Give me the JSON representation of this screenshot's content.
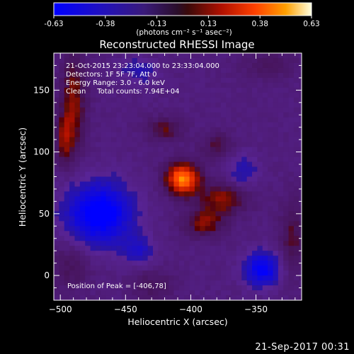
{
  "chart_data": {
    "type": "heatmap",
    "title": "Reconstructed RHESSI Image",
    "xlabel": "Heliocentric X (arcsec)",
    "ylabel": "Heliocentric Y (arcsec)",
    "xlim": [
      -505,
      -315
    ],
    "ylim": [
      -20,
      180
    ],
    "xticks": [
      -500,
      -450,
      -400,
      -350
    ],
    "yticks": [
      0,
      50,
      100,
      150
    ],
    "colorbar": {
      "min": -0.63,
      "max": 0.63,
      "ticks": [
        "-0.63",
        "-0.38",
        "-0.13",
        "0.13",
        "0.38",
        "0.63"
      ],
      "label": "(photons cm⁻² s⁻¹ asec⁻²)"
    },
    "annotations": [
      "21-Oct-2015 23:23:04.000 to 23:33:04.000",
      "Detectors: 1F 5F 7F, Att 0",
      "Energy Range: 3.0 - 6.0 keV",
      "Clean     Total counts: 7.94E+04"
    ],
    "peak_label": "Position of Peak = [-406,78]",
    "peak": {
      "x": -406,
      "y": 78,
      "value": 0.63
    },
    "features": [
      {
        "name": "primary peak",
        "x": -406,
        "y": 78,
        "value": 0.63,
        "sx": 9,
        "sy": 9
      },
      {
        "name": "ribbon lower-right",
        "x": -375,
        "y": 62,
        "value": 0.3,
        "sx": 13,
        "sy": 9
      },
      {
        "name": "ribbon lower",
        "x": -390,
        "y": 42,
        "value": 0.28,
        "sx": 11,
        "sy": 8
      },
      {
        "name": "arm upper",
        "x": -420,
        "y": 118,
        "value": 0.22,
        "sx": 10,
        "sy": 7
      },
      {
        "name": "arm upper-right",
        "x": -380,
        "y": 105,
        "value": 0.18,
        "sx": 9,
        "sy": 8
      },
      {
        "name": "left column",
        "x": -490,
        "y": 140,
        "value": 0.28,
        "sx": 7,
        "sy": 28
      },
      {
        "name": "left column lower",
        "x": -497,
        "y": 110,
        "value": 0.24,
        "sx": 5,
        "sy": 14
      },
      {
        "name": "right edge patch",
        "x": -322,
        "y": 30,
        "value": 0.2,
        "sx": 7,
        "sy": 22
      },
      {
        "name": "left bottom patch",
        "x": -492,
        "y": 8,
        "value": 0.16,
        "sx": 11,
        "sy": 14
      },
      {
        "name": "bottom mid patch",
        "x": -430,
        "y": -8,
        "value": 0.14,
        "sx": 12,
        "sy": 10
      },
      {
        "name": "top right patch",
        "x": -340,
        "y": 170,
        "value": 0.14,
        "sx": 14,
        "sy": 8
      },
      {
        "name": "negative left",
        "x": -470,
        "y": 50,
        "value": -0.55,
        "sx": 18,
        "sy": 18
      },
      {
        "name": "negative bottom-right",
        "x": -345,
        "y": 5,
        "value": -0.45,
        "sx": 10,
        "sy": 10
      },
      {
        "name": "negative mid-right",
        "x": -360,
        "y": 85,
        "value": -0.2,
        "sx": 8,
        "sy": 10
      },
      {
        "name": "negative top",
        "x": -440,
        "y": 165,
        "value": -0.18,
        "sx": 10,
        "sy": 8
      },
      {
        "name": "negative low-mid",
        "x": -440,
        "y": 20,
        "value": -0.22,
        "sx": 9,
        "sy": 9
      }
    ],
    "background_value": -0.16,
    "pixel_size": 4,
    "colormap": "rhessi-blue-white-red"
  },
  "footer": {
    "date_stamp": "21-Sep-2017 00:31"
  }
}
